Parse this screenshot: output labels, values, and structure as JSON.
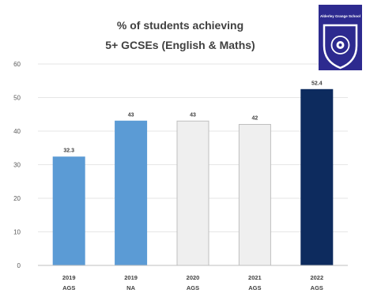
{
  "chart_data": {
    "type": "bar",
    "title": [
      "% of students achieving",
      "5+ GCSEs (English & Maths)"
    ],
    "categories": [
      [
        "2019",
        "AGS"
      ],
      [
        "2019",
        "NA"
      ],
      [
        "2020",
        "AGS"
      ],
      [
        "2021",
        "AGS"
      ],
      [
        "2022",
        "AGS"
      ]
    ],
    "values": [
      32.3,
      43,
      43,
      42,
      52.4
    ],
    "data_labels": [
      "32.3",
      "43",
      "43",
      "42",
      "52.4"
    ],
    "bar_colors": [
      "#5b9bd5",
      "#5b9bd5",
      "#efefef",
      "#efefef",
      "#0d2b5e"
    ],
    "bar_strokes": [
      "#5b9bd5",
      "#5b9bd5",
      "#bfbfbf",
      "#bfbfbf",
      "#0d2b5e"
    ],
    "ylim": [
      0,
      60
    ],
    "yticks": [
      0,
      10,
      20,
      30,
      40,
      50,
      60
    ],
    "xlabel": "",
    "ylabel": "",
    "grid": true,
    "legend": "none"
  },
  "logo": {
    "name": "school-crest",
    "text": "Alderley Grange School",
    "colors": {
      "shield": "#2d2a8f",
      "border": "#ffffff",
      "emblem": "#ffffff"
    }
  }
}
